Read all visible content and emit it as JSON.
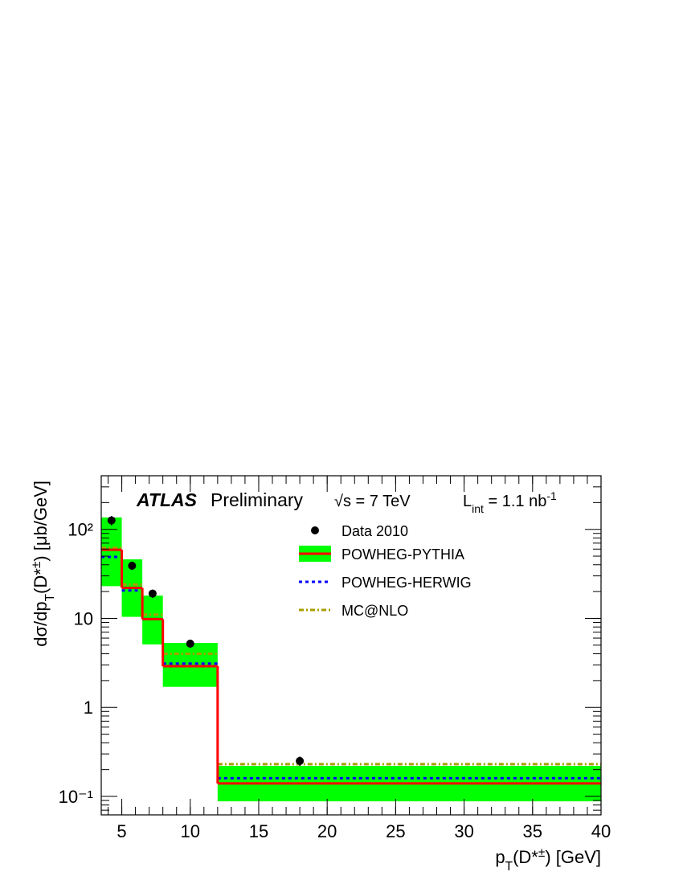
{
  "chart_data": {
    "type": "hep-histogram",
    "experiment": "ATLAS",
    "status": "Preliminary",
    "energy": "√s = 7 TeV",
    "luminosity": {
      "symbol": "L",
      "subscript": "int",
      "text": " = 1.1 nb",
      "superscript": "-1"
    },
    "x_label": {
      "main": "p",
      "sub": "T",
      "mid": "(D*",
      "sup": "±",
      "end": ") [GeV]"
    },
    "y_label": {
      "main": "dσ/dp",
      "sub": "T",
      "mid": "(D*",
      "sup": "±",
      "end": ") [μb/GeV]"
    },
    "bins": [
      3.5,
      5,
      6.5,
      8,
      12,
      40
    ],
    "xlim": [
      3.5,
      40
    ],
    "xticks": [
      5,
      10,
      15,
      20,
      25,
      30,
      35,
      40
    ],
    "ylim": [
      0.062,
      400
    ],
    "log_y": true,
    "minor_ticks": true,
    "yticks": [
      {
        "value": 0.1,
        "label": "10⁻¹"
      },
      1,
      10,
      {
        "value": 100,
        "label": "10²"
      }
    ],
    "data": {
      "name": "Data 2010",
      "color": "#000000",
      "x": [
        4.25,
        5.75,
        7.25,
        10,
        18
      ],
      "values": [
        126,
        39,
        19,
        5.2,
        0.25
      ],
      "errors": [
        15,
        4,
        2,
        0.5,
        0.03
      ]
    },
    "series": [
      {
        "name": "POWHEG-PYTHIA",
        "color": "#ff0000",
        "band_color": "#00ff00",
        "values": [
          59,
          22,
          9.8,
          2.9,
          0.14
        ],
        "band_low": [
          23,
          10.4,
          5.1,
          1.7,
          0.088
        ],
        "band_high": [
          136,
          46,
          18,
          5.3,
          0.22
        ]
      },
      {
        "name": "POWHEG-HERWIG",
        "color": "#0000ff",
        "dash": "4,4",
        "values": [
          49,
          20.6,
          9.8,
          3.1,
          0.16
        ]
      },
      {
        "name": "MC@NLO",
        "color": "#a89e00",
        "dash": "6,3,2,3",
        "values": [
          62,
          24,
          11,
          4.0,
          0.23
        ]
      }
    ]
  }
}
